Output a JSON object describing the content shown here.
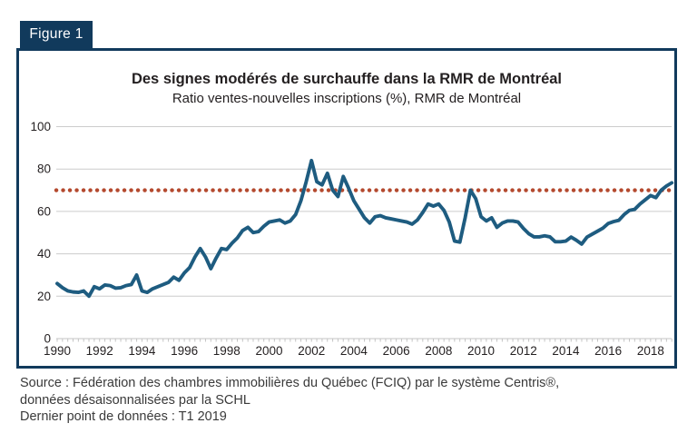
{
  "figure": {
    "label": "Figure 1"
  },
  "chart_data": {
    "type": "line",
    "title": "Des signes modérés de surchauffe dans la RMR de Montréal",
    "subtitle": "Ratio ventes-nouvelles inscriptions (%), RMR de Montréal",
    "frequency": "quarterly",
    "x_tick_labels": [
      "1990",
      "1992",
      "1994",
      "1996",
      "1998",
      "2000",
      "2002",
      "2004",
      "2006",
      "2008",
      "2010",
      "2012",
      "2014",
      "2016",
      "2018"
    ],
    "y_ticks": [
      0,
      20,
      40,
      60,
      80,
      100
    ],
    "ylim": [
      0,
      100
    ],
    "last_point_label": "T1 2019",
    "series": [
      {
        "name": "Ratio ventes-nouvelles inscriptions (%), RMR de Montréal",
        "color": "#1e5c80",
        "start": "1990 T1",
        "values": [
          26,
          24,
          22.5,
          22,
          21.8,
          22.5,
          20,
          24.5,
          23.5,
          25.3,
          25,
          23.8,
          24,
          25,
          25.5,
          30,
          22.5,
          21.8,
          23.5,
          24.5,
          25.5,
          26.5,
          29,
          27.5,
          31,
          33.5,
          38.5,
          42.5,
          38.5,
          33,
          38,
          42.5,
          42,
          45,
          47.5,
          51,
          52.5,
          50,
          50.5,
          53,
          55,
          55.5,
          56,
          54.5,
          55.5,
          58.5,
          65,
          74,
          84,
          74,
          72.5,
          78,
          70,
          67,
          76.5,
          71,
          65,
          61,
          57,
          54.5,
          57.5,
          58,
          57,
          56.5,
          56,
          55.5,
          55,
          54,
          56,
          59.5,
          63.5,
          62.5,
          63.5,
          60.5,
          55,
          46,
          45.5,
          57,
          70,
          66,
          57.5,
          55.5,
          57,
          52.5,
          54.5,
          55.5,
          55.5,
          55,
          52,
          49.5,
          48,
          48,
          48.5,
          48,
          45.7,
          45.7,
          46,
          47.9,
          46.4,
          44.6,
          47.9,
          49.3,
          50.7,
          52.1,
          54.3,
          55.2,
          55.8,
          58.5,
          60.5,
          61,
          63.5,
          65.5,
          67.5,
          66.5,
          70,
          72,
          73.5
        ]
      }
    ],
    "reference_line": {
      "value": 70,
      "color": "#b4492e",
      "style": "dotted"
    },
    "grid": true,
    "legend": "none"
  },
  "source": {
    "line1": "Source : Fédération des chambres immobilières du Québec (FCIQ) par le système Centris®,",
    "line2": "données désaisonnalisées par la SCHL",
    "line3": "Dernier point de données : T1 2019"
  },
  "colors": {
    "navy": "#113a5c",
    "line": "#1e5c80",
    "reference": "#b4492e",
    "grid": "#cccccc"
  }
}
